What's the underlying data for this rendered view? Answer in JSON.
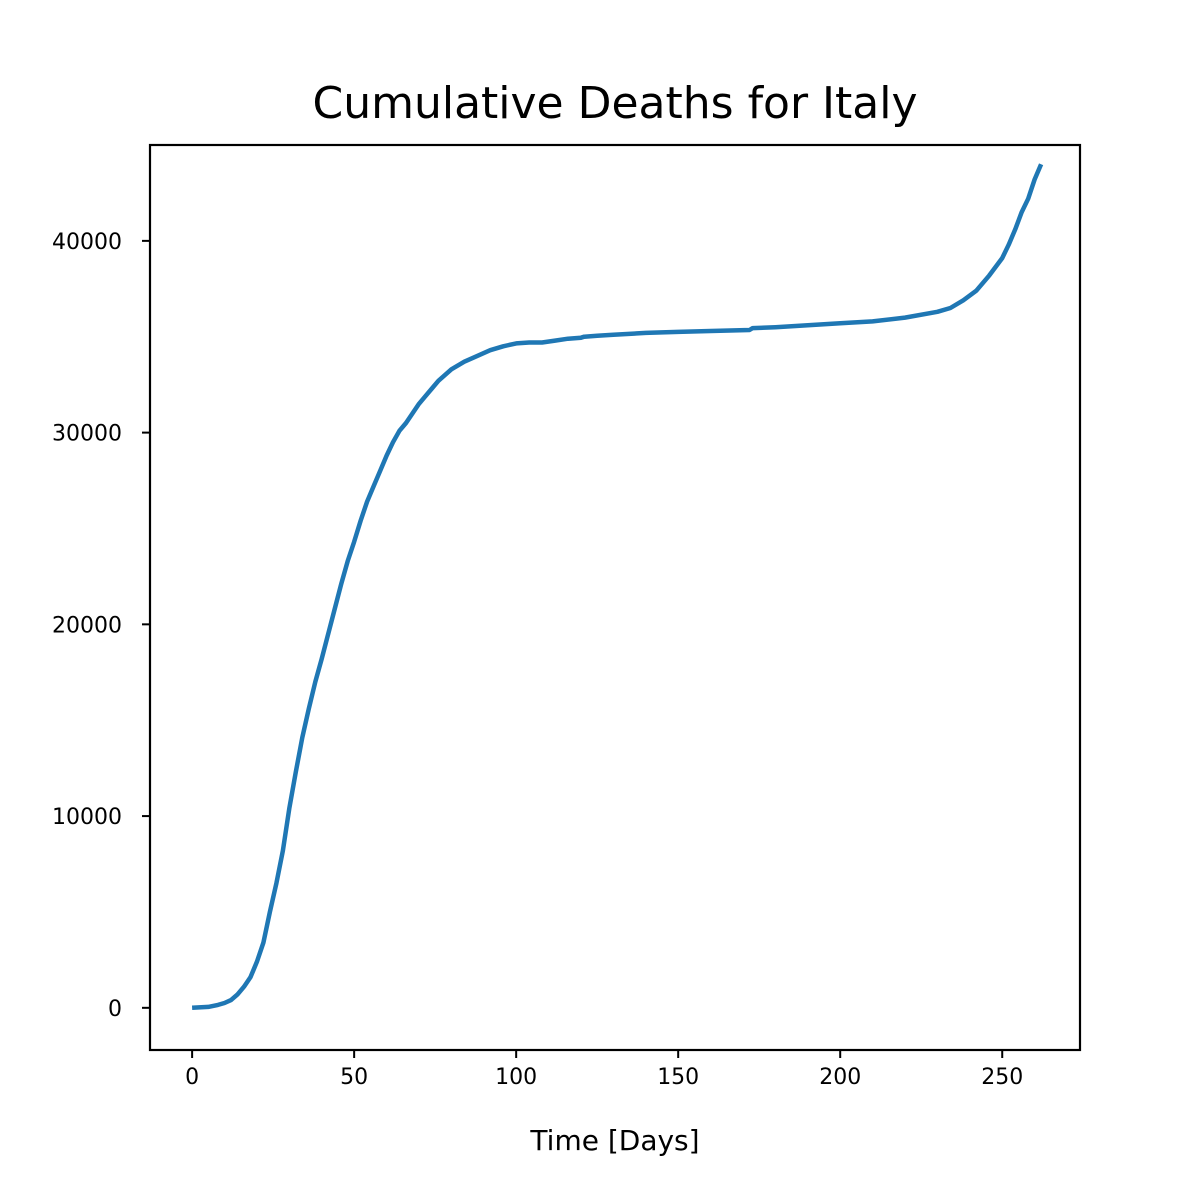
{
  "chart_data": {
    "type": "line",
    "title": "Cumulative Deaths for Italy",
    "xlabel": "Time [Days]",
    "ylabel": "",
    "xlim": [
      -13,
      274
    ],
    "ylim": [
      -2200,
      45000
    ],
    "xticks": [
      0,
      50,
      100,
      150,
      200,
      250
    ],
    "yticks": [
      0,
      10000,
      20000,
      30000,
      40000
    ],
    "grid": false,
    "line_color": "#1f77b4",
    "series": [
      {
        "x": [
          0,
          5,
          8,
          10,
          12,
          14,
          16,
          18,
          20,
          22,
          24,
          26,
          28,
          30,
          32,
          34,
          36,
          38,
          40,
          42,
          44,
          46,
          48,
          50,
          52,
          54,
          56,
          58,
          60,
          62,
          64,
          66,
          68,
          70,
          72,
          74,
          76,
          78,
          80,
          84,
          88,
          92,
          96,
          100,
          104,
          108,
          112,
          116,
          120,
          121,
          125,
          130,
          140,
          150,
          160,
          172,
          173,
          180,
          190,
          200,
          210,
          220,
          230,
          234,
          238,
          242,
          246,
          250,
          252,
          254,
          256,
          258,
          260,
          262
        ],
        "y": [
          0,
          50,
          150,
          250,
          400,
          700,
          1100,
          1600,
          2400,
          3400,
          5000,
          6500,
          8200,
          10400,
          12300,
          14100,
          15600,
          17000,
          18200,
          19500,
          20800,
          22100,
          23300,
          24300,
          25400,
          26400,
          27200,
          28000,
          28800,
          29500,
          30100,
          30500,
          31000,
          31500,
          31900,
          32300,
          32700,
          33000,
          33300,
          33700,
          34000,
          34300,
          34500,
          34650,
          34700,
          34700,
          34800,
          34900,
          34950,
          35000,
          35050,
          35100,
          35200,
          35250,
          35300,
          35350,
          35450,
          35500,
          35600,
          35700,
          35800,
          36000,
          36300,
          36500,
          36900,
          37400,
          38200,
          39100,
          39800,
          40600,
          41500,
          42200,
          43200,
          44000
        ]
      }
    ]
  }
}
